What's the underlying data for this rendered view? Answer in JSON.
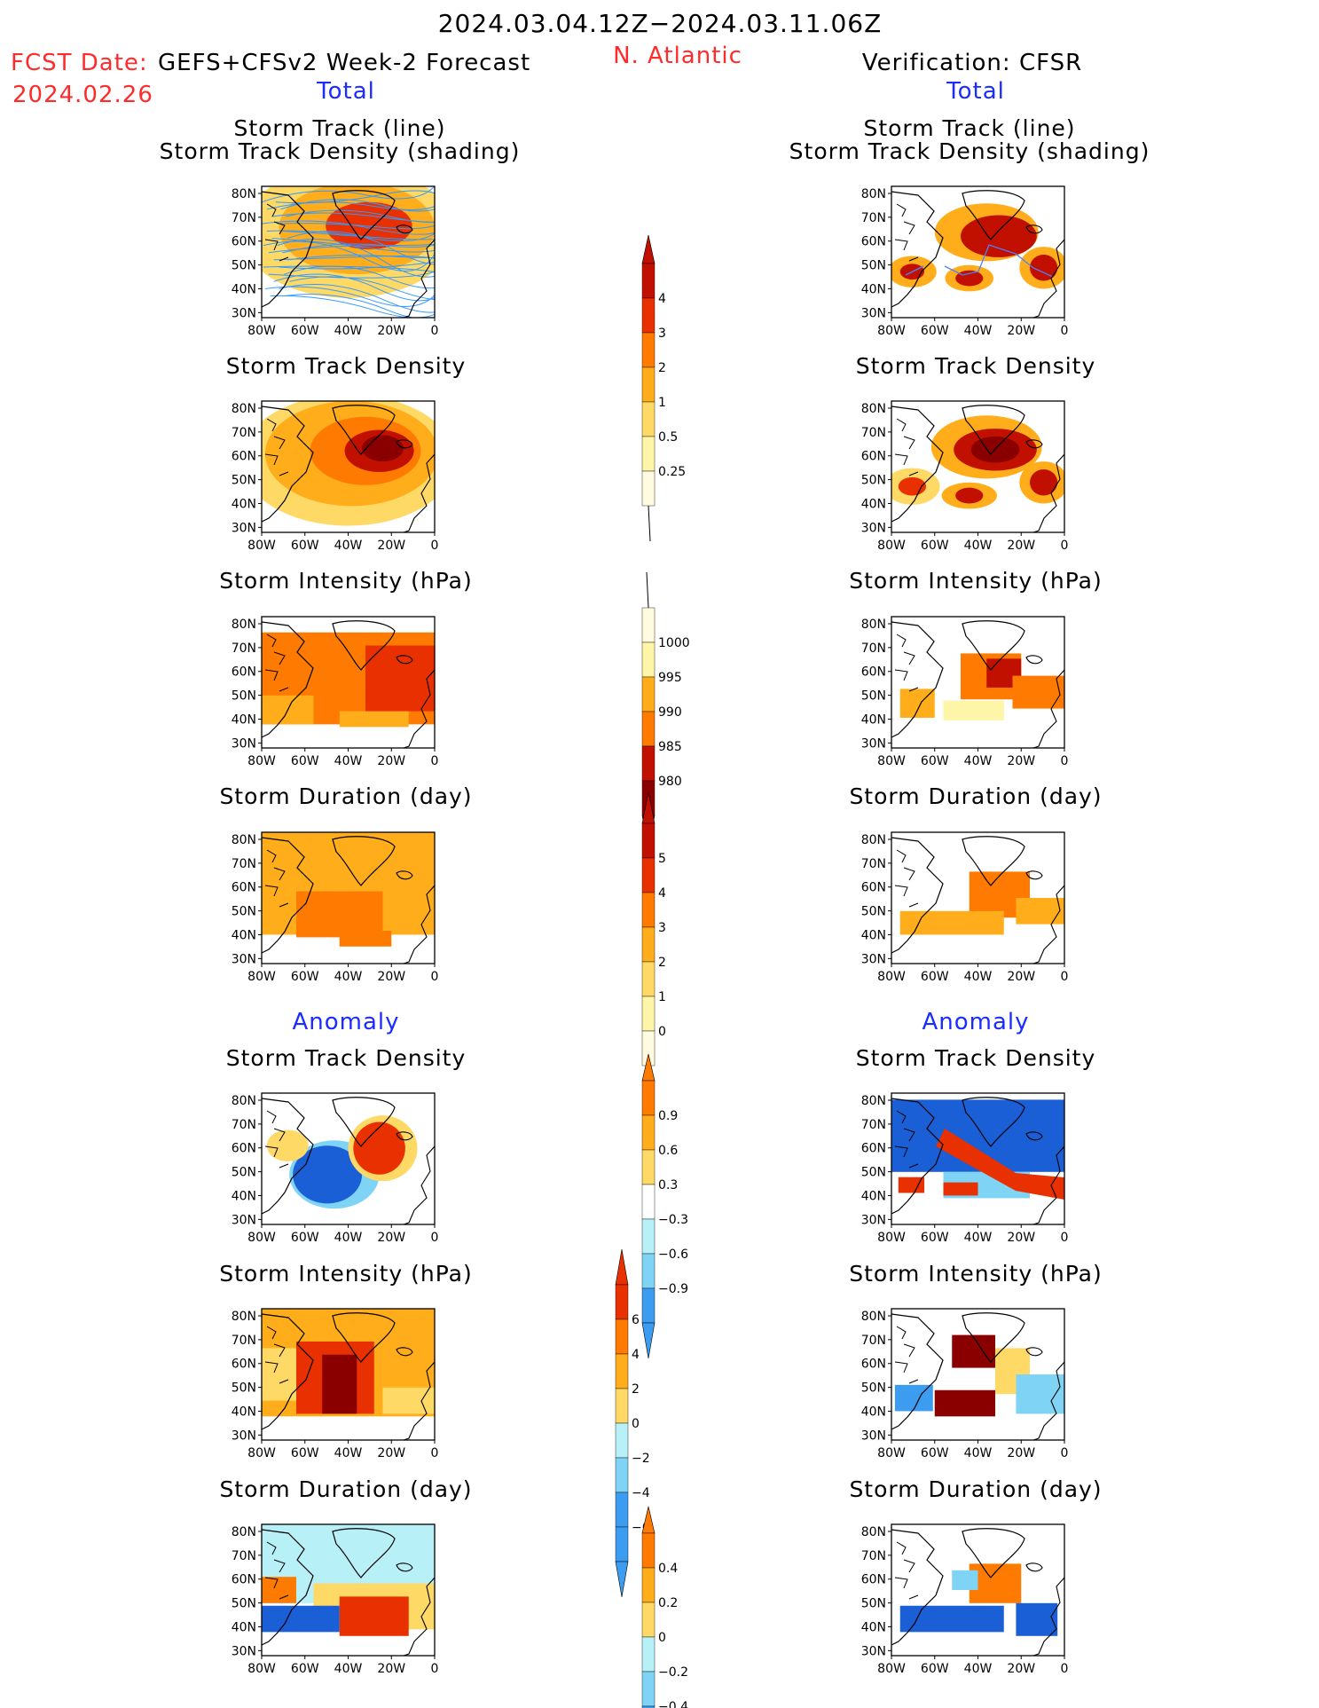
{
  "header": {
    "period": "2024.03.04.12Z−2024.03.11.06Z",
    "fcst_date_label": "FCST Date:",
    "fcst_date": "2024.02.26",
    "model": "GEFS+CFSv2 Week-2 Forecast",
    "region": "N. Atlantic",
    "verification": "Verification: CFSR"
  },
  "sections": {
    "total": "Total",
    "anomaly": "Anomaly"
  },
  "panel_titles": {
    "track_line": "Storm Track (line)",
    "track_shading": "Storm Track Density (shading)",
    "density": "Storm Track Density",
    "intensity": "Storm Intensity (hPa)",
    "duration": "Storm Duration (day)"
  },
  "axes": {
    "lat_ticks": [
      "80N",
      "70N",
      "60N",
      "50N",
      "40N",
      "30N"
    ],
    "lon_ticks": [
      "80W",
      "60W",
      "40W",
      "20W",
      "0"
    ]
  },
  "colorbars": {
    "track_density_total": [
      "4",
      "3",
      "2",
      "1",
      "0.5",
      "0.25"
    ],
    "intensity_total": [
      "1000",
      "995",
      "990",
      "985",
      "980"
    ],
    "duration_total": [
      "5",
      "4",
      "3",
      "2",
      "1",
      "0"
    ],
    "track_density_anom": [
      "0.9",
      "0.6",
      "0.3",
      "−0.3",
      "−0.6",
      "−0.9"
    ],
    "intensity_anom": [
      "6",
      "4",
      "2",
      "0",
      "−2",
      "−4",
      "−6"
    ],
    "duration_anom": [
      "0.4",
      "0.2",
      "0",
      "−0.2",
      "−0.4"
    ]
  },
  "palette": {
    "c1": "#fff5a8",
    "c2": "#ffd966",
    "c3": "#ffad1a",
    "c4": "#ff7a00",
    "c5": "#e83000",
    "c6": "#c11000",
    "c7": "#8a0000",
    "b1": "#b8f0f8",
    "b2": "#7fd4f5",
    "b3": "#3c9cf0",
    "b4": "#1a5fd6",
    "track_line": "#3399ff"
  }
}
